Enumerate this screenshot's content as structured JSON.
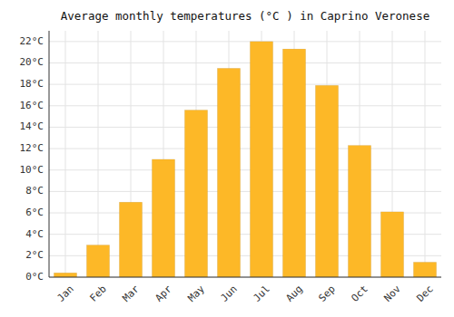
{
  "chart_data": {
    "type": "bar",
    "title": "Average monthly temperatures (°C ) in Caprino Veronese",
    "categories": [
      "Jan",
      "Feb",
      "Mar",
      "Apr",
      "May",
      "Jun",
      "Jul",
      "Aug",
      "Sep",
      "Oct",
      "Nov",
      "Dec"
    ],
    "values": [
      0.4,
      3.0,
      7.0,
      11.0,
      15.6,
      19.5,
      22.0,
      21.3,
      17.9,
      12.3,
      6.1,
      1.4
    ],
    "color": "#FDB827",
    "ylim": [
      0,
      23
    ],
    "yticks": [
      {
        "value": 0,
        "label": "0°C"
      },
      {
        "value": 2,
        "label": "2°C"
      },
      {
        "value": 4,
        "label": "4°C"
      },
      {
        "value": 6,
        "label": "6°C"
      },
      {
        "value": 8,
        "label": "8°C"
      },
      {
        "value": 10,
        "label": "10°C"
      },
      {
        "value": 12,
        "label": "12°C"
      },
      {
        "value": 14,
        "label": "14°C"
      },
      {
        "value": 16,
        "label": "16°C"
      },
      {
        "value": 18,
        "label": "18°C"
      },
      {
        "value": 20,
        "label": "20°C"
      },
      {
        "value": 22,
        "label": "22°C"
      }
    ],
    "grid": true
  }
}
